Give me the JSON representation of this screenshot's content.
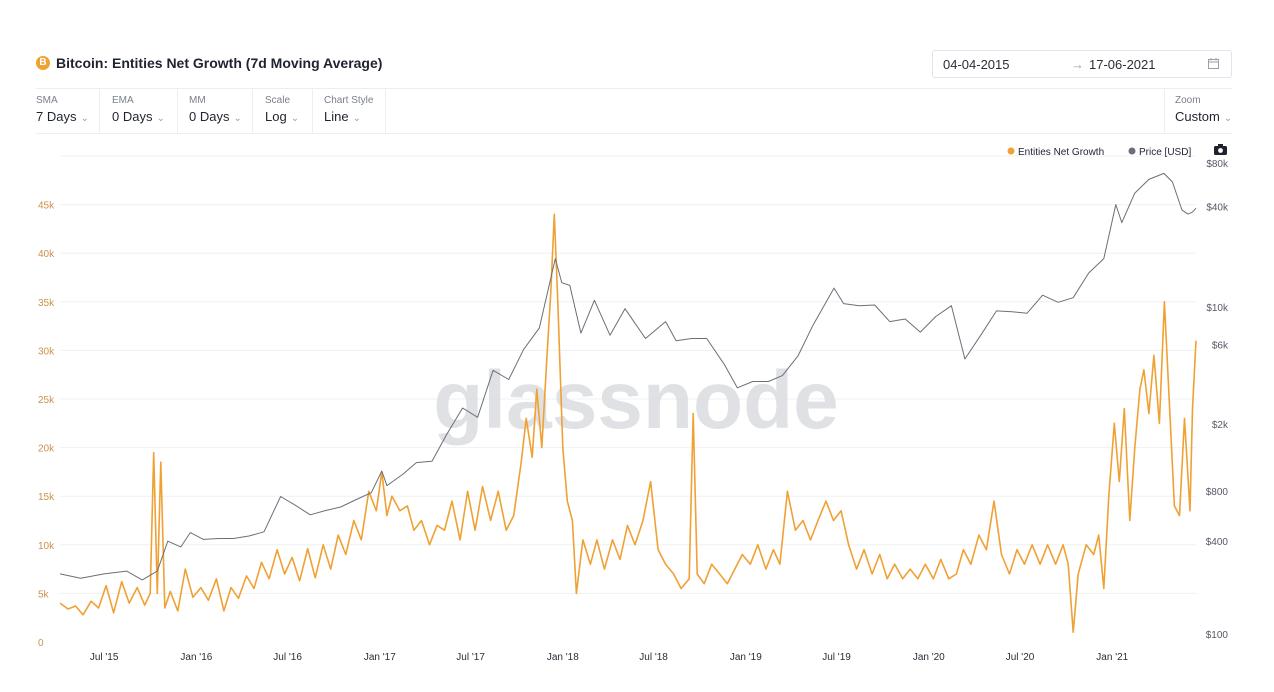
{
  "header": {
    "icon_glyph": "B",
    "title": "Bitcoin: Entities Net Growth (7d Moving Average)",
    "date_start": "04-04-2015",
    "date_arrow": "→",
    "date_end": "17-06-2021"
  },
  "controls": [
    {
      "label": "SMA",
      "value": "7 Days"
    },
    {
      "label": "EMA",
      "value": "0 Days"
    },
    {
      "label": "MM",
      "value": "0 Days"
    },
    {
      "label": "Scale",
      "value": "Log"
    },
    {
      "label": "Chart Style",
      "value": "Line"
    }
  ],
  "zoom": {
    "label": "Zoom",
    "value": "Custom"
  },
  "icons": {
    "camera": "camera-icon",
    "calendar": "calendar-icon",
    "chevron": "chevron-down-icon"
  },
  "watermark": "glassnode",
  "chart_data": {
    "type": "line",
    "x_tick_labels": [
      "Jul '15",
      "Jan '16",
      "Jul '16",
      "Jan '17",
      "Jul '17",
      "Jan '18",
      "Jul '18",
      "Jan '19",
      "Jul '19",
      "Jan '20",
      "Jul '20",
      "Jan '21"
    ],
    "x_tick_dates": [
      "2015-07-01",
      "2016-01-01",
      "2016-07-01",
      "2017-01-01",
      "2017-07-01",
      "2018-01-01",
      "2018-07-01",
      "2019-01-01",
      "2019-07-01",
      "2020-01-01",
      "2020-07-01",
      "2021-01-01"
    ],
    "x_range": [
      "2015-04-04",
      "2021-06-17"
    ],
    "y_left": {
      "tick_values": [
        0,
        5000,
        10000,
        15000,
        20000,
        25000,
        30000,
        35000,
        40000,
        45000
      ],
      "tick_labels": [
        "0",
        "5k",
        "10k",
        "15k",
        "20k",
        "25k",
        "30k",
        "35k",
        "40k",
        "45k"
      ],
      "range": [
        0,
        50000
      ],
      "color": "#c8924a"
    },
    "y_right": {
      "scale": "log",
      "tick_values": [
        100,
        400,
        800,
        2000,
        6000,
        10000,
        40000,
        80000
      ],
      "tick_labels": [
        "$100",
        "$400",
        "$800",
        "$2k",
        "$6k",
        "$10k",
        "$40k",
        "$80k"
      ],
      "range": [
        100,
        80000
      ],
      "color": "#555a66"
    },
    "legend": {
      "position": "top-right"
    },
    "grid": true,
    "series": [
      {
        "name": "Entities Net Growth",
        "axis": "left",
        "color": "#f0a134",
        "points": [
          [
            "2015-04-04",
            4000
          ],
          [
            "2015-04-20",
            3400
          ],
          [
            "2015-05-05",
            3700
          ],
          [
            "2015-05-20",
            2800
          ],
          [
            "2015-06-05",
            4200
          ],
          [
            "2015-06-20",
            3500
          ],
          [
            "2015-07-05",
            5800
          ],
          [
            "2015-07-20",
            3000
          ],
          [
            "2015-08-05",
            6200
          ],
          [
            "2015-08-20",
            4000
          ],
          [
            "2015-09-05",
            5600
          ],
          [
            "2015-09-20",
            3800
          ],
          [
            "2015-10-01",
            5000
          ],
          [
            "2015-10-08",
            19500
          ],
          [
            "2015-10-15",
            5000
          ],
          [
            "2015-10-22",
            18500
          ],
          [
            "2015-10-30",
            3500
          ],
          [
            "2015-11-10",
            5200
          ],
          [
            "2015-11-25",
            3200
          ],
          [
            "2015-12-10",
            7500
          ],
          [
            "2015-12-25",
            4600
          ],
          [
            "2016-01-10",
            5600
          ],
          [
            "2016-01-25",
            4300
          ],
          [
            "2016-02-10",
            6500
          ],
          [
            "2016-02-25",
            3200
          ],
          [
            "2016-03-10",
            5600
          ],
          [
            "2016-03-25",
            4500
          ],
          [
            "2016-04-10",
            6800
          ],
          [
            "2016-04-25",
            5500
          ],
          [
            "2016-05-10",
            8200
          ],
          [
            "2016-05-25",
            6500
          ],
          [
            "2016-06-10",
            9500
          ],
          [
            "2016-06-25",
            7000
          ],
          [
            "2016-07-10",
            8700
          ],
          [
            "2016-07-25",
            6300
          ],
          [
            "2016-08-10",
            9600
          ],
          [
            "2016-08-25",
            6600
          ],
          [
            "2016-09-10",
            10000
          ],
          [
            "2016-09-25",
            7500
          ],
          [
            "2016-10-10",
            11000
          ],
          [
            "2016-10-25",
            9000
          ],
          [
            "2016-11-10",
            12500
          ],
          [
            "2016-11-25",
            10500
          ],
          [
            "2016-12-10",
            15500
          ],
          [
            "2016-12-25",
            13500
          ],
          [
            "2017-01-05",
            17500
          ],
          [
            "2017-01-15",
            13000
          ],
          [
            "2017-01-25",
            15000
          ],
          [
            "2017-02-10",
            13500
          ],
          [
            "2017-02-25",
            14000
          ],
          [
            "2017-03-10",
            11500
          ],
          [
            "2017-03-25",
            12500
          ],
          [
            "2017-04-10",
            10000
          ],
          [
            "2017-04-25",
            12000
          ],
          [
            "2017-05-10",
            11500
          ],
          [
            "2017-05-25",
            14500
          ],
          [
            "2017-06-10",
            10500
          ],
          [
            "2017-06-25",
            15500
          ],
          [
            "2017-07-10",
            11500
          ],
          [
            "2017-07-25",
            16000
          ],
          [
            "2017-08-10",
            12500
          ],
          [
            "2017-08-25",
            15500
          ],
          [
            "2017-09-10",
            11500
          ],
          [
            "2017-09-25",
            13000
          ],
          [
            "2017-10-10",
            18500
          ],
          [
            "2017-10-20",
            23000
          ],
          [
            "2017-11-01",
            19000
          ],
          [
            "2017-11-10",
            26000
          ],
          [
            "2017-11-20",
            20000
          ],
          [
            "2017-12-01",
            30000
          ],
          [
            "2017-12-08",
            36000
          ],
          [
            "2017-12-15",
            44000
          ],
          [
            "2017-12-22",
            35000
          ],
          [
            "2018-01-01",
            20000
          ],
          [
            "2018-01-10",
            14500
          ],
          [
            "2018-01-20",
            12500
          ],
          [
            "2018-01-28",
            5000
          ],
          [
            "2018-02-10",
            10500
          ],
          [
            "2018-02-25",
            8000
          ],
          [
            "2018-03-10",
            10500
          ],
          [
            "2018-03-25",
            7500
          ],
          [
            "2018-04-10",
            10500
          ],
          [
            "2018-04-25",
            8500
          ],
          [
            "2018-05-10",
            12000
          ],
          [
            "2018-05-25",
            10000
          ],
          [
            "2018-06-10",
            12500
          ],
          [
            "2018-06-25",
            16500
          ],
          [
            "2018-07-10",
            9500
          ],
          [
            "2018-07-25",
            8000
          ],
          [
            "2018-08-10",
            7000
          ],
          [
            "2018-08-25",
            5500
          ],
          [
            "2018-09-10",
            6500
          ],
          [
            "2018-09-18",
            23500
          ],
          [
            "2018-09-26",
            7000
          ],
          [
            "2018-10-10",
            6000
          ],
          [
            "2018-10-25",
            8000
          ],
          [
            "2018-11-10",
            7000
          ],
          [
            "2018-11-25",
            6000
          ],
          [
            "2018-12-10",
            7500
          ],
          [
            "2018-12-25",
            9000
          ],
          [
            "2019-01-10",
            8000
          ],
          [
            "2019-01-25",
            10000
          ],
          [
            "2019-02-10",
            7500
          ],
          [
            "2019-02-25",
            9500
          ],
          [
            "2019-03-10",
            8000
          ],
          [
            "2019-03-25",
            15500
          ],
          [
            "2019-04-10",
            11500
          ],
          [
            "2019-04-25",
            12500
          ],
          [
            "2019-05-10",
            10500
          ],
          [
            "2019-05-25",
            12500
          ],
          [
            "2019-06-10",
            14500
          ],
          [
            "2019-06-25",
            12500
          ],
          [
            "2019-07-10",
            13500
          ],
          [
            "2019-07-25",
            10000
          ],
          [
            "2019-08-10",
            7500
          ],
          [
            "2019-08-25",
            9500
          ],
          [
            "2019-09-10",
            7000
          ],
          [
            "2019-09-25",
            9000
          ],
          [
            "2019-10-10",
            6500
          ],
          [
            "2019-10-25",
            8000
          ],
          [
            "2019-11-10",
            6500
          ],
          [
            "2019-11-25",
            7500
          ],
          [
            "2019-12-10",
            6500
          ],
          [
            "2019-12-25",
            8000
          ],
          [
            "2020-01-10",
            6500
          ],
          [
            "2020-01-25",
            8500
          ],
          [
            "2020-02-10",
            6500
          ],
          [
            "2020-02-25",
            7000
          ],
          [
            "2020-03-10",
            9500
          ],
          [
            "2020-03-25",
            8000
          ],
          [
            "2020-04-10",
            11000
          ],
          [
            "2020-04-25",
            9500
          ],
          [
            "2020-05-10",
            14500
          ],
          [
            "2020-05-25",
            9000
          ],
          [
            "2020-06-10",
            7000
          ],
          [
            "2020-06-25",
            9500
          ],
          [
            "2020-07-10",
            8000
          ],
          [
            "2020-07-25",
            10000
          ],
          [
            "2020-08-10",
            8000
          ],
          [
            "2020-08-25",
            10000
          ],
          [
            "2020-09-10",
            8000
          ],
          [
            "2020-09-25",
            10000
          ],
          [
            "2020-10-05",
            8000
          ],
          [
            "2020-10-15",
            1000
          ],
          [
            "2020-10-25",
            7000
          ],
          [
            "2020-11-10",
            10000
          ],
          [
            "2020-11-25",
            9000
          ],
          [
            "2020-12-05",
            11000
          ],
          [
            "2020-12-15",
            5500
          ],
          [
            "2020-12-25",
            15000
          ],
          [
            "2021-01-05",
            22500
          ],
          [
            "2021-01-15",
            16500
          ],
          [
            "2021-01-25",
            24000
          ],
          [
            "2021-02-05",
            12500
          ],
          [
            "2021-02-15",
            20000
          ],
          [
            "2021-02-25",
            26000
          ],
          [
            "2021-03-05",
            28000
          ],
          [
            "2021-03-15",
            23500
          ],
          [
            "2021-03-25",
            29500
          ],
          [
            "2021-04-05",
            22500
          ],
          [
            "2021-04-15",
            35000
          ],
          [
            "2021-04-25",
            24500
          ],
          [
            "2021-05-05",
            14000
          ],
          [
            "2021-05-15",
            13000
          ],
          [
            "2021-05-25",
            23000
          ],
          [
            "2021-06-05",
            13500
          ],
          [
            "2021-06-10",
            24000
          ],
          [
            "2021-06-17",
            31000
          ]
        ]
      },
      {
        "name": "Price [USD]",
        "axis": "right",
        "color": "#6b6f78",
        "points": [
          [
            "2015-04-04",
            255
          ],
          [
            "2015-05-15",
            240
          ],
          [
            "2015-07-01",
            255
          ],
          [
            "2015-08-15",
            265
          ],
          [
            "2015-09-15",
            235
          ],
          [
            "2015-10-15",
            265
          ],
          [
            "2015-11-05",
            400
          ],
          [
            "2015-12-01",
            370
          ],
          [
            "2015-12-20",
            450
          ],
          [
            "2016-01-15",
            410
          ],
          [
            "2016-02-15",
            415
          ],
          [
            "2016-03-15",
            415
          ],
          [
            "2016-04-15",
            430
          ],
          [
            "2016-05-15",
            455
          ],
          [
            "2016-06-17",
            740
          ],
          [
            "2016-07-15",
            660
          ],
          [
            "2016-08-15",
            575
          ],
          [
            "2016-09-15",
            610
          ],
          [
            "2016-10-15",
            640
          ],
          [
            "2016-11-15",
            710
          ],
          [
            "2016-12-15",
            780
          ],
          [
            "2017-01-05",
            1050
          ],
          [
            "2017-01-15",
            860
          ],
          [
            "2017-02-15",
            1000
          ],
          [
            "2017-03-15",
            1180
          ],
          [
            "2017-04-15",
            1200
          ],
          [
            "2017-05-15",
            1750
          ],
          [
            "2017-06-15",
            2500
          ],
          [
            "2017-07-15",
            2200
          ],
          [
            "2017-08-15",
            4200
          ],
          [
            "2017-09-15",
            3700
          ],
          [
            "2017-10-15",
            5600
          ],
          [
            "2017-11-15",
            7500
          ],
          [
            "2017-12-17",
            19500
          ],
          [
            "2017-12-30",
            14000
          ],
          [
            "2018-01-15",
            13500
          ],
          [
            "2018-02-06",
            7000
          ],
          [
            "2018-03-05",
            11000
          ],
          [
            "2018-04-05",
            6800
          ],
          [
            "2018-05-05",
            9800
          ],
          [
            "2018-06-15",
            6500
          ],
          [
            "2018-07-25",
            8200
          ],
          [
            "2018-08-15",
            6300
          ],
          [
            "2018-09-15",
            6500
          ],
          [
            "2018-10-15",
            6500
          ],
          [
            "2018-11-20",
            4500
          ],
          [
            "2018-12-15",
            3300
          ],
          [
            "2019-01-15",
            3600
          ],
          [
            "2019-02-15",
            3600
          ],
          [
            "2019-03-15",
            3900
          ],
          [
            "2019-04-15",
            5100
          ],
          [
            "2019-05-15",
            7800
          ],
          [
            "2019-06-26",
            13000
          ],
          [
            "2019-07-15",
            10500
          ],
          [
            "2019-08-15",
            10200
          ],
          [
            "2019-09-15",
            10300
          ],
          [
            "2019-10-15",
            8200
          ],
          [
            "2019-11-15",
            8500
          ],
          [
            "2019-12-15",
            7100
          ],
          [
            "2020-01-15",
            8800
          ],
          [
            "2020-02-15",
            10200
          ],
          [
            "2020-03-13",
            4900
          ],
          [
            "2020-04-15",
            6900
          ],
          [
            "2020-05-15",
            9500
          ],
          [
            "2020-06-15",
            9400
          ],
          [
            "2020-07-15",
            9200
          ],
          [
            "2020-08-15",
            11800
          ],
          [
            "2020-09-15",
            10700
          ],
          [
            "2020-10-15",
            11400
          ],
          [
            "2020-11-15",
            16000
          ],
          [
            "2020-12-15",
            19500
          ],
          [
            "2021-01-08",
            41000
          ],
          [
            "2021-01-20",
            32000
          ],
          [
            "2021-02-15",
            48000
          ],
          [
            "2021-03-15",
            58000
          ],
          [
            "2021-04-14",
            63000
          ],
          [
            "2021-05-01",
            56000
          ],
          [
            "2021-05-20",
            38000
          ],
          [
            "2021-06-01",
            36000
          ],
          [
            "2021-06-10",
            37000
          ],
          [
            "2021-06-17",
            39000
          ]
        ]
      }
    ]
  }
}
